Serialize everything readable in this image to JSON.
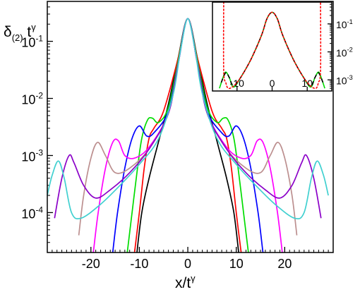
{
  "chart_data": [
    {
      "type": "line",
      "ylabel_main": "δ",
      "ylabel_sub": "(2)",
      "ylabel_tail": " t",
      "ylabel_sup": "γ",
      "xlabel_main": "x/t",
      "xlabel_sup": "γ",
      "yscale": "log",
      "xlim": [
        -29,
        30
      ],
      "ylim": [
        2e-05,
        0.5
      ],
      "xticks": [
        -20,
        -10,
        0,
        10,
        20
      ],
      "xtick_labels": [
        "-20",
        "-10",
        "0",
        "10",
        "20"
      ],
      "yticks": [
        0.0001,
        0.001,
        0.01,
        0.1
      ],
      "ytick_labels": [
        {
          "base": "10",
          "exp": "-4"
        },
        {
          "base": "10",
          "exp": "-3"
        },
        {
          "base": "10",
          "exp": "-2"
        },
        {
          "base": "10",
          "exp": "-1"
        }
      ],
      "series": [
        {
          "color": "#000000",
          "peak": 0,
          "edge": 10,
          "points": [
            [
              -10.5,
              2e-05
            ],
            [
              -9.5,
              0.0001
            ],
            [
              -8,
              0.0004
            ],
            [
              -6,
              0.0018
            ],
            [
              -4,
              0.008
            ],
            [
              -2,
              0.05
            ],
            [
              0,
              0.25
            ],
            [
              2,
              0.05
            ],
            [
              4,
              0.008
            ],
            [
              6,
              0.0018
            ],
            [
              8,
              0.0004
            ],
            [
              9.5,
              0.0001
            ],
            [
              10.5,
              2e-05
            ]
          ]
        },
        {
          "color": "#ff0000",
          "peak": 0,
          "edge": 10,
          "points": [
            [
              -11,
              2e-05
            ],
            [
              -10,
              0.0001
            ],
            [
              -9,
              0.0006
            ],
            [
              -8,
              0.002
            ],
            [
              -7,
              0.003
            ],
            [
              -5,
              0.006
            ],
            [
              -2,
              0.05
            ],
            [
              0,
              0.25
            ],
            [
              2,
              0.05
            ],
            [
              5,
              0.006
            ],
            [
              7,
              0.003
            ],
            [
              8,
              0.002
            ],
            [
              9,
              0.0006
            ],
            [
              10,
              0.0001
            ],
            [
              11,
              2e-05
            ]
          ]
        },
        {
          "color": "#00dd00",
          "peak": 0,
          "edge": 10,
          "points": [
            [
              -12.5,
              2e-05
            ],
            [
              -11.5,
              0.0001
            ],
            [
              -10.5,
              0.0005
            ],
            [
              -9.5,
              0.002
            ],
            [
              -8.3,
              0.0042
            ],
            [
              -7.3,
              0.0045
            ],
            [
              -6,
              0.0038
            ],
            [
              -4,
              0.007
            ],
            [
              -2,
              0.045
            ],
            [
              0,
              0.25
            ],
            [
              2,
              0.045
            ],
            [
              4,
              0.007
            ],
            [
              6,
              0.0038
            ],
            [
              7.3,
              0.0045
            ],
            [
              8.3,
              0.0042
            ],
            [
              9.5,
              0.002
            ],
            [
              10.5,
              0.0005
            ],
            [
              11.5,
              0.0001
            ],
            [
              12.5,
              2e-05
            ]
          ]
        },
        {
          "color": "#0000ff",
          "peak": 0,
          "edge": 10,
          "points": [
            [
              -15.5,
              2e-05
            ],
            [
              -14.5,
              0.0001
            ],
            [
              -13,
              0.0006
            ],
            [
              -11.5,
              0.002
            ],
            [
              -10,
              0.0033
            ],
            [
              -8.5,
              0.0022
            ],
            [
              -7,
              0.0025
            ],
            [
              -4,
              0.006
            ],
            [
              -2,
              0.04
            ],
            [
              0,
              0.25
            ],
            [
              2,
              0.04
            ],
            [
              4,
              0.006
            ],
            [
              7,
              0.0025
            ],
            [
              8.5,
              0.0022
            ],
            [
              10,
              0.0033
            ],
            [
              11.5,
              0.002
            ],
            [
              13,
              0.0006
            ],
            [
              14.5,
              0.0001
            ],
            [
              15.5,
              2e-05
            ]
          ]
        },
        {
          "color": "#ff00ff",
          "peak": 0,
          "edge": 10,
          "points": [
            [
              -19.5,
              2e-05
            ],
            [
              -18.5,
              0.0001
            ],
            [
              -17,
              0.0006
            ],
            [
              -15.5,
              0.0017
            ],
            [
              -14.3,
              0.0018
            ],
            [
              -13,
              0.001
            ],
            [
              -11,
              0.0009
            ],
            [
              -8,
              0.0014
            ],
            [
              -4,
              0.0055
            ],
            [
              -2,
              0.04
            ],
            [
              0,
              0.25
            ],
            [
              2,
              0.04
            ],
            [
              4,
              0.0055
            ],
            [
              8,
              0.0014
            ],
            [
              11,
              0.0009
            ],
            [
              13,
              0.001
            ],
            [
              14.3,
              0.0018
            ],
            [
              15.5,
              0.0017
            ],
            [
              17,
              0.0006
            ],
            [
              18.5,
              0.0001
            ],
            [
              19.5,
              2e-05
            ]
          ]
        },
        {
          "color": "#bc8f8f",
          "peak": 0,
          "edge": 10,
          "points": [
            [
              -22.5,
              4e-05
            ],
            [
              -21.5,
              0.0002
            ],
            [
              -20,
              0.0009
            ],
            [
              -18.6,
              0.0017
            ],
            [
              -17,
              0.001
            ],
            [
              -15,
              0.0005
            ],
            [
              -12,
              0.0006
            ],
            [
              -8,
              0.0013
            ],
            [
              -4,
              0.0055
            ],
            [
              -2,
              0.04
            ],
            [
              0,
              0.25
            ],
            [
              2,
              0.04
            ],
            [
              4,
              0.0055
            ],
            [
              8,
              0.0013
            ],
            [
              12,
              0.0006
            ],
            [
              15,
              0.0005
            ],
            [
              17,
              0.001
            ],
            [
              18.6,
              0.0017
            ],
            [
              20,
              0.0009
            ],
            [
              21.5,
              0.0002
            ],
            [
              22.5,
              4e-05
            ]
          ]
        },
        {
          "color": "#8b00c8",
          "peak": 0,
          "edge": 10,
          "points": [
            [
              -27.5,
              8e-05
            ],
            [
              -26,
              0.0004
            ],
            [
              -24.5,
              0.001
            ],
            [
              -23.5,
              0.00075
            ],
            [
              -21.5,
              0.0003
            ],
            [
              -19,
              0.00018
            ],
            [
              -16,
              0.00025
            ],
            [
              -12,
              0.0005
            ],
            [
              -8,
              0.0013
            ],
            [
              -4,
              0.0055
            ],
            [
              -2,
              0.04
            ],
            [
              0,
              0.25
            ],
            [
              2,
              0.04
            ],
            [
              4,
              0.0055
            ],
            [
              8,
              0.0013
            ],
            [
              12,
              0.0005
            ],
            [
              16,
              0.00025
            ],
            [
              19,
              0.00018
            ],
            [
              21.5,
              0.0003
            ],
            [
              23.5,
              0.00075
            ],
            [
              24.5,
              0.001
            ],
            [
              26,
              0.0004
            ],
            [
              27.5,
              8e-05
            ]
          ]
        },
        {
          "color": "#40d0d0",
          "peak": 0,
          "edge": 10,
          "points": [
            [
              -29,
              0.0002
            ],
            [
              -28,
              0.00045
            ],
            [
              -26.7,
              0.0008
            ],
            [
              -25.5,
              0.0004
            ],
            [
              -24,
              0.0001
            ],
            [
              -22,
              8e-05
            ],
            [
              -18,
              0.00014
            ],
            [
              -14,
              0.0003
            ],
            [
              -10,
              0.0007
            ],
            [
              -6,
              0.002
            ],
            [
              -3,
              0.012
            ],
            [
              -1.5,
              0.07
            ],
            [
              0,
              0.25
            ],
            [
              1.5,
              0.07
            ],
            [
              3,
              0.012
            ],
            [
              6,
              0.002
            ],
            [
              10,
              0.0007
            ],
            [
              14,
              0.0003
            ],
            [
              18,
              0.00014
            ],
            [
              22,
              8e-05
            ],
            [
              24,
              0.0001
            ],
            [
              25.5,
              0.0004
            ],
            [
              26.7,
              0.0008
            ],
            [
              28,
              0.00045
            ],
            [
              29,
              0.0002
            ]
          ]
        }
      ]
    },
    {
      "type": "line",
      "panel": "inset",
      "yscale": "log",
      "xlim": [
        -17,
        17
      ],
      "ylim": [
        0.0004,
        0.6
      ],
      "xticks": [
        -10,
        0,
        10
      ],
      "xtick_labels": [
        "-10",
        "0",
        "10"
      ],
      "yticks": [
        0.001,
        0.01,
        0.1
      ],
      "ytick_labels": [
        {
          "base": "10",
          "exp": "-3"
        },
        {
          "base": "10",
          "exp": "-2"
        },
        {
          "base": "10",
          "exp": "-1"
        }
      ],
      "series": [
        {
          "color": "#00dd00",
          "style": "solid",
          "points": [
            [
              -15,
              0.0005
            ],
            [
              -14,
              0.0012
            ],
            [
              -13.2,
              0.0019
            ],
            [
              -12.2,
              0.0012
            ],
            [
              -11,
              0.00055
            ],
            [
              -9,
              0.0012
            ],
            [
              -6,
              0.0055
            ],
            [
              -3,
              0.04
            ],
            [
              -1.5,
              0.15
            ],
            [
              0,
              0.26
            ],
            [
              1.5,
              0.15
            ],
            [
              3,
              0.04
            ],
            [
              6,
              0.0055
            ],
            [
              9,
              0.0012
            ],
            [
              11,
              0.00055
            ],
            [
              12.2,
              0.0012
            ],
            [
              13.2,
              0.0019
            ],
            [
              14,
              0.0012
            ],
            [
              15,
              0.0005
            ]
          ]
        },
        {
          "color": "#000000",
          "style": "dashed",
          "points": [
            [
              -14.5,
              0.0008
            ],
            [
              -13.2,
              0.0018
            ],
            [
              -12.2,
              0.0012
            ],
            [
              -11,
              0.0006
            ],
            [
              -9,
              0.0012
            ],
            [
              -6,
              0.0055
            ],
            [
              -3,
              0.04
            ],
            [
              -1.5,
              0.15
            ],
            [
              0,
              0.26
            ],
            [
              1.5,
              0.15
            ],
            [
              3,
              0.04
            ],
            [
              6,
              0.0055
            ],
            [
              9,
              0.0012
            ],
            [
              11,
              0.0006
            ],
            [
              12.2,
              0.0012
            ],
            [
              13.2,
              0.0018
            ],
            [
              14.5,
              0.0008
            ]
          ]
        },
        {
          "color": "#ff0000",
          "style": "dotted",
          "points": [
            [
              -13.8,
              0.6
            ],
            [
              -13.8,
              0.0022
            ],
            [
              -13.2,
              0.0008
            ],
            [
              -12.5,
              0.0005
            ],
            [
              -11,
              0.0006
            ],
            [
              -9,
              0.0012
            ],
            [
              -6,
              0.0055
            ],
            [
              -3,
              0.04
            ],
            [
              -1.5,
              0.15
            ],
            [
              0,
              0.26
            ],
            [
              1.5,
              0.15
            ],
            [
              3,
              0.04
            ],
            [
              6,
              0.0055
            ],
            [
              9,
              0.0012
            ],
            [
              11,
              0.0006
            ],
            [
              12.5,
              0.0005
            ],
            [
              13.2,
              0.0008
            ],
            [
              13.8,
              0.0022
            ],
            [
              13.8,
              0.6
            ]
          ]
        }
      ]
    }
  ]
}
